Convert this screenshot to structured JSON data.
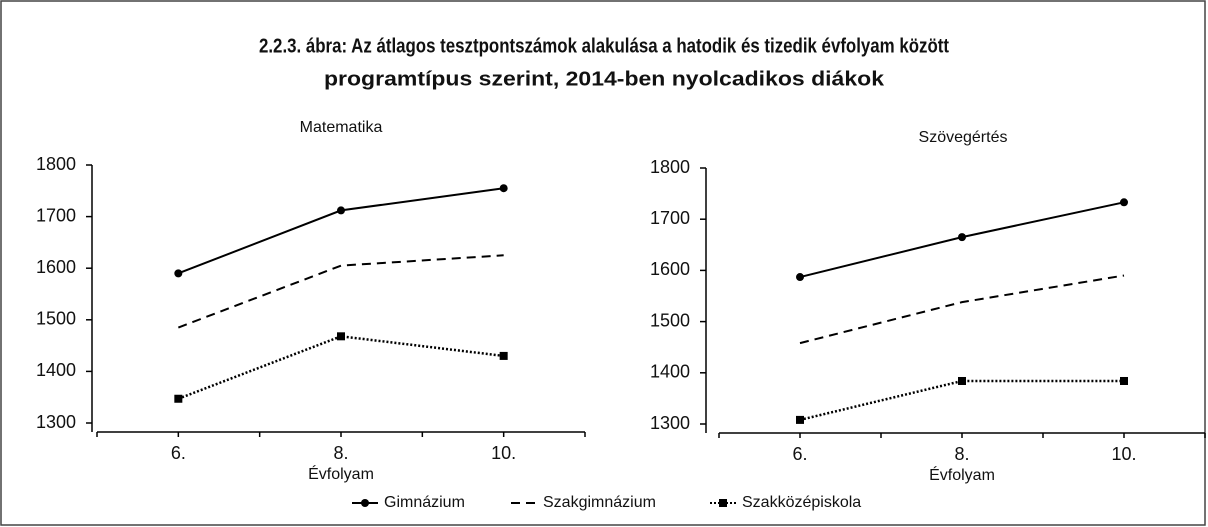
{
  "title": [
    "2.2.3. ábra: Az átlagos tesztpontszámok alakulása a hatodik és tizedik évfolyam között",
    "programtípus szerint, 2014-ben nyolcadikos diákok"
  ],
  "chart_data": [
    {
      "type": "line",
      "title": "Matematika",
      "x_label": "Évfolyam",
      "categories": [
        "6.",
        "8.",
        "10."
      ],
      "ylim": [
        1300,
        1800
      ],
      "yticks": [
        1300,
        1400,
        1500,
        1600,
        1700,
        1800
      ],
      "series": [
        {
          "name": "Gimnázium",
          "color": "#000000",
          "style": "solid",
          "marker": "circle",
          "values": [
            1590,
            1712,
            1755
          ]
        },
        {
          "name": "Szakgimnázium",
          "color": "#000000",
          "style": "dashed",
          "marker": "none",
          "values": [
            1485,
            1605,
            1625
          ]
        },
        {
          "name": "Szakközépiskola",
          "color": "#000000",
          "style": "dotted",
          "marker": "square",
          "values": [
            1347,
            1468,
            1430
          ]
        }
      ]
    },
    {
      "type": "line",
      "title": "Szövegértés",
      "x_label": "Évfolyam",
      "categories": [
        "6.",
        "8.",
        "10."
      ],
      "ylim": [
        1300,
        1800
      ],
      "yticks": [
        1300,
        1400,
        1500,
        1600,
        1700,
        1800
      ],
      "series": [
        {
          "color": "#000000",
          "style": "solid",
          "marker": "circle",
          "values": [
            1587,
            1665,
            1733
          ]
        },
        {
          "color": "#000000",
          "style": "dashed",
          "marker": "none",
          "values": [
            1458,
            1538,
            1590
          ]
        },
        {
          "color": "#000000",
          "style": "dotted",
          "marker": "square",
          "values": [
            1308,
            1384,
            1384
          ]
        }
      ]
    }
  ]
}
